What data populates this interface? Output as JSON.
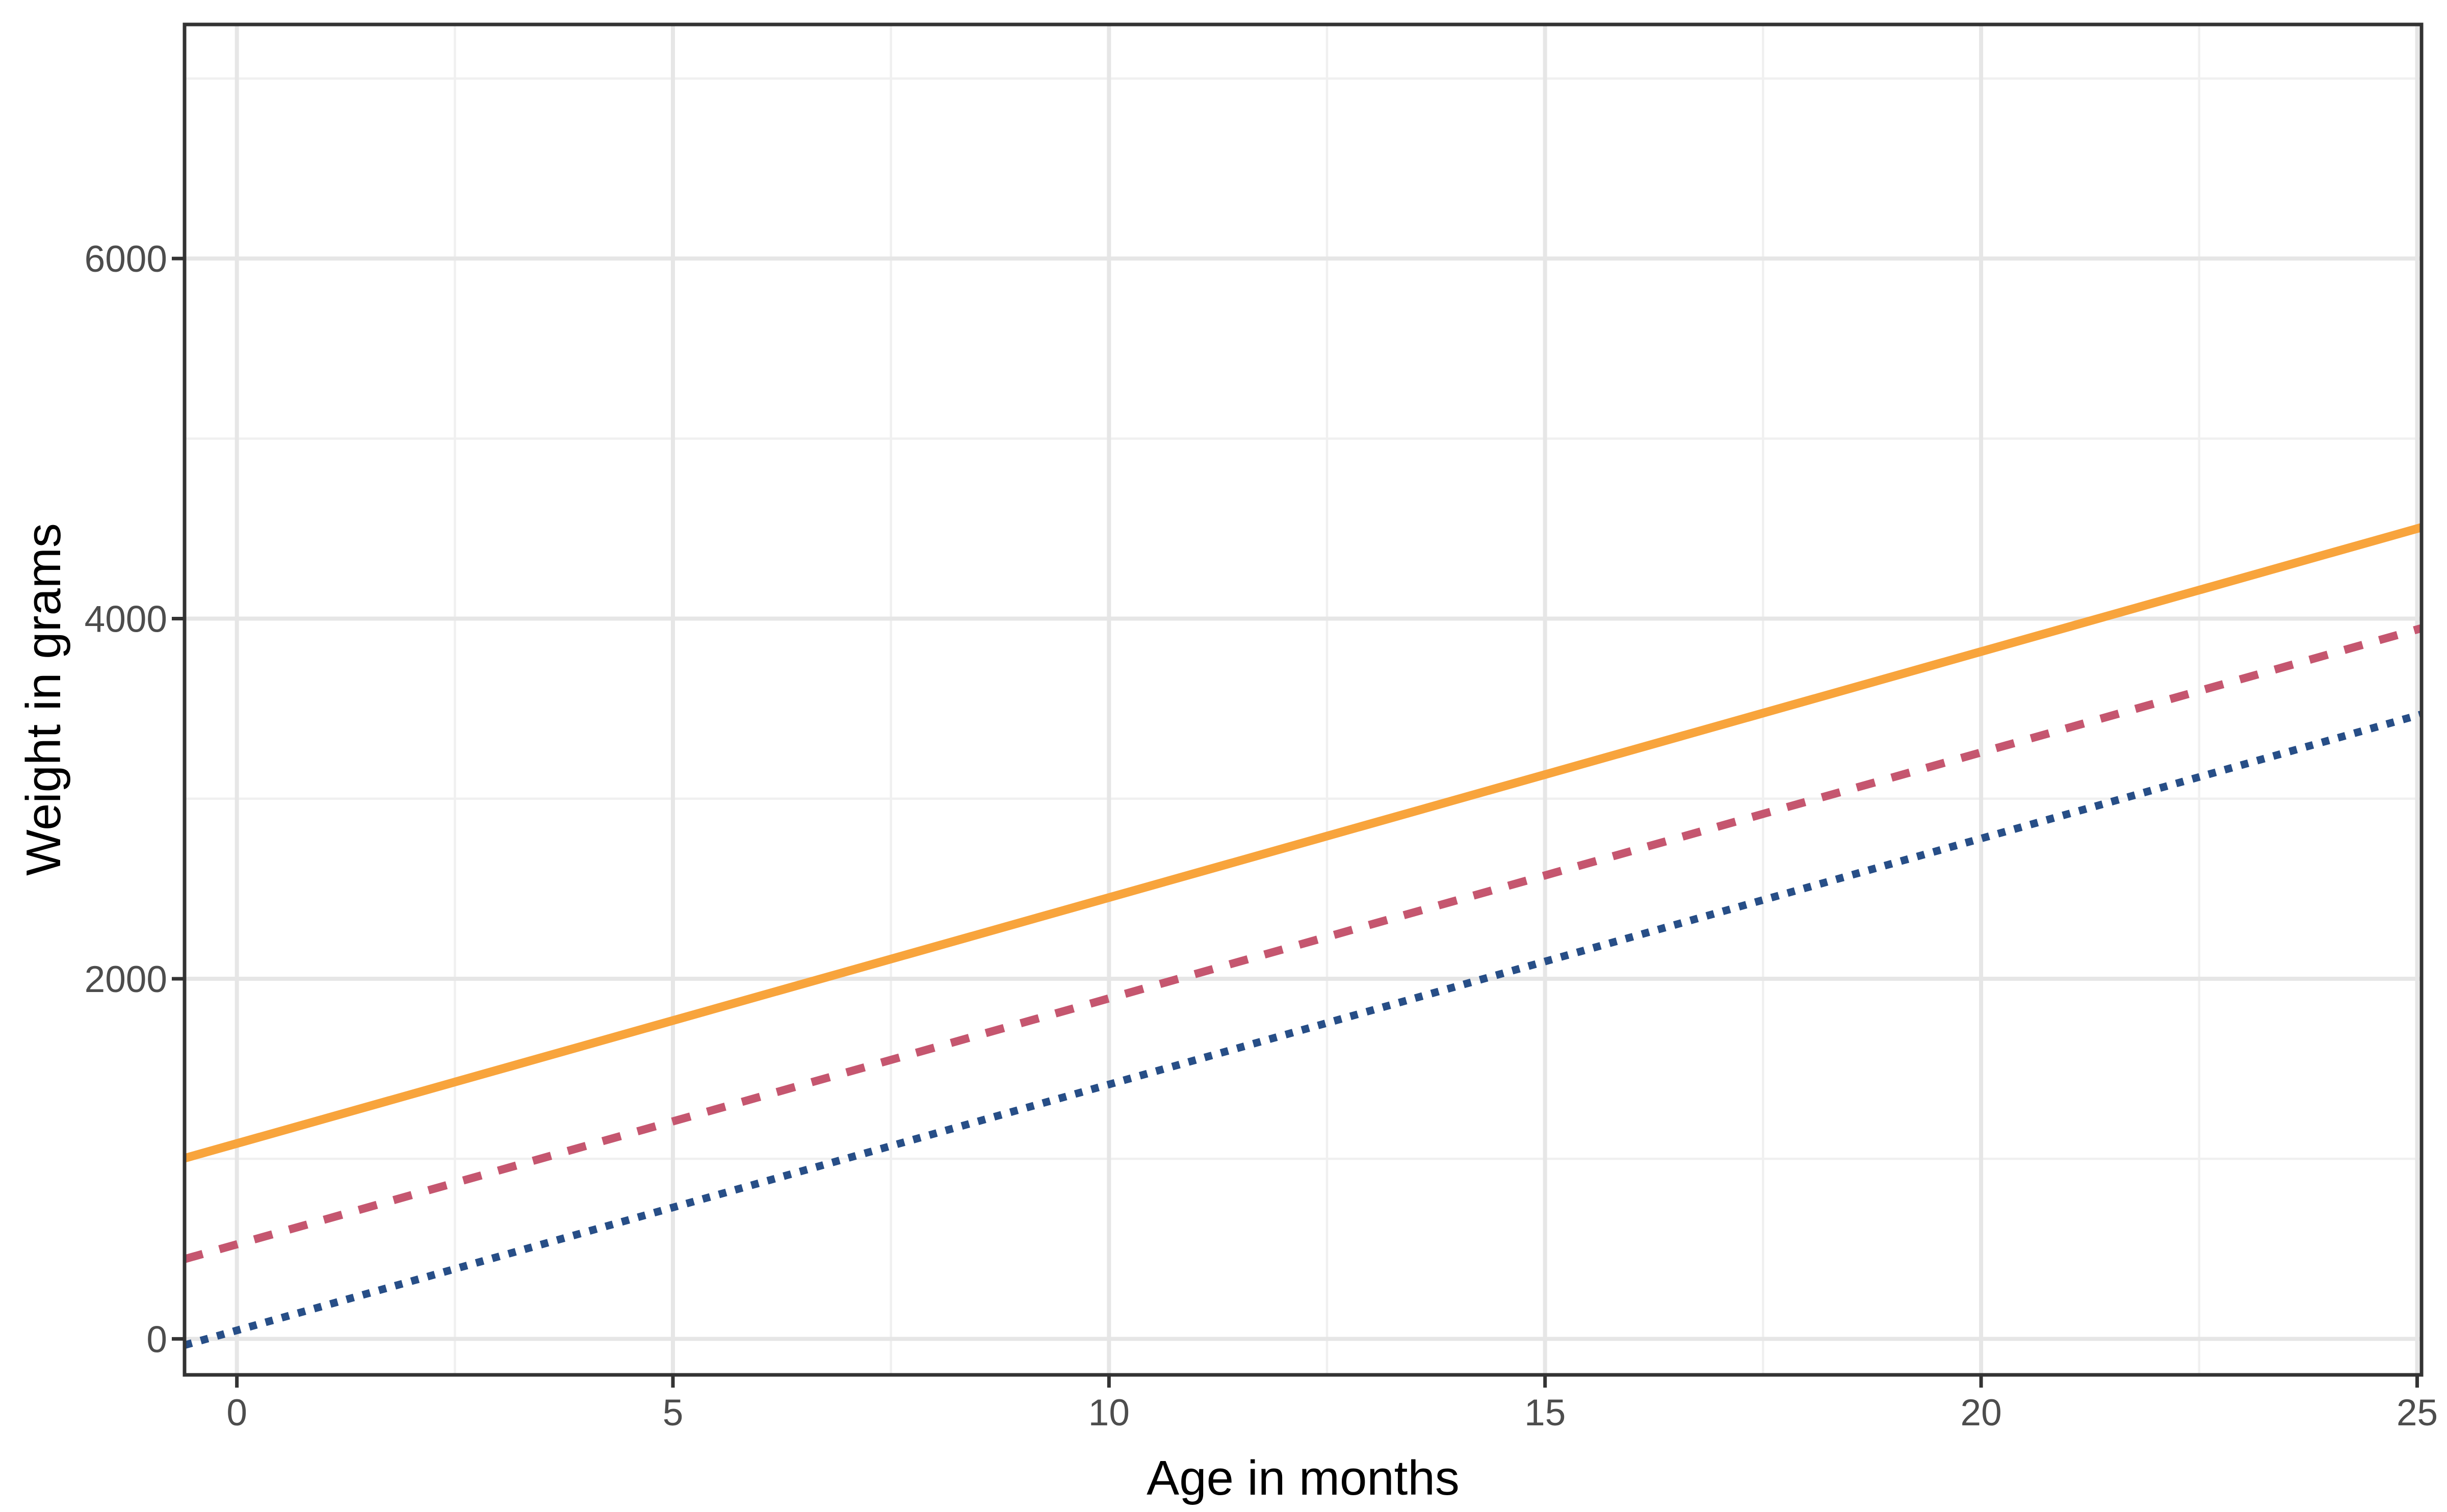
{
  "chart_data": {
    "type": "line",
    "title": "",
    "xlabel": "Age in months",
    "ylabel": "Weight in grams",
    "x_ticks": [
      0,
      5,
      10,
      15,
      20,
      25
    ],
    "x_minor_ticks": [
      2.5,
      7.5,
      12.5,
      17.5,
      22.5
    ],
    "y_ticks": [
      0,
      2000,
      4000,
      6000
    ],
    "y_minor_ticks": [
      1000,
      3000,
      5000,
      7000
    ],
    "xlim": [
      -0.6,
      25.05
    ],
    "ylim": [
      -200,
      7300
    ],
    "grid": true,
    "legend_position": "none",
    "series": [
      {
        "name": "upper-line-solid-orange",
        "style": "solid",
        "color": "#F8A43C",
        "slope": 136.6,
        "intercept": 1085,
        "x_start": -0.6,
        "x_end": 25.05,
        "y_at_age_0": 1085,
        "y_at_age_25": 4500
      },
      {
        "name": "middle-line-dashed-rose",
        "style": "dashed",
        "color": "#C5566F",
        "slope": 136.6,
        "intercept": 525,
        "x_start": -0.6,
        "x_end": 25.05,
        "y_at_age_0": 525,
        "y_at_age_25": 3940
      },
      {
        "name": "lower-line-dotted-navy",
        "style": "dotted",
        "color": "#274E87",
        "slope": 136.6,
        "intercept": 47,
        "x_start": -0.6,
        "x_end": 25.05,
        "y_at_age_0": 47,
        "y_at_age_25": 3460
      }
    ],
    "panel": {
      "background": "#FFFFFF",
      "border_color": "#333333",
      "major_grid_color": "#E6E6E6",
      "minor_grid_color": "#F0F0F0",
      "tick_color": "#333333",
      "tick_label_color": "#4D4D4D",
      "axis_title_color": "#000000"
    }
  }
}
